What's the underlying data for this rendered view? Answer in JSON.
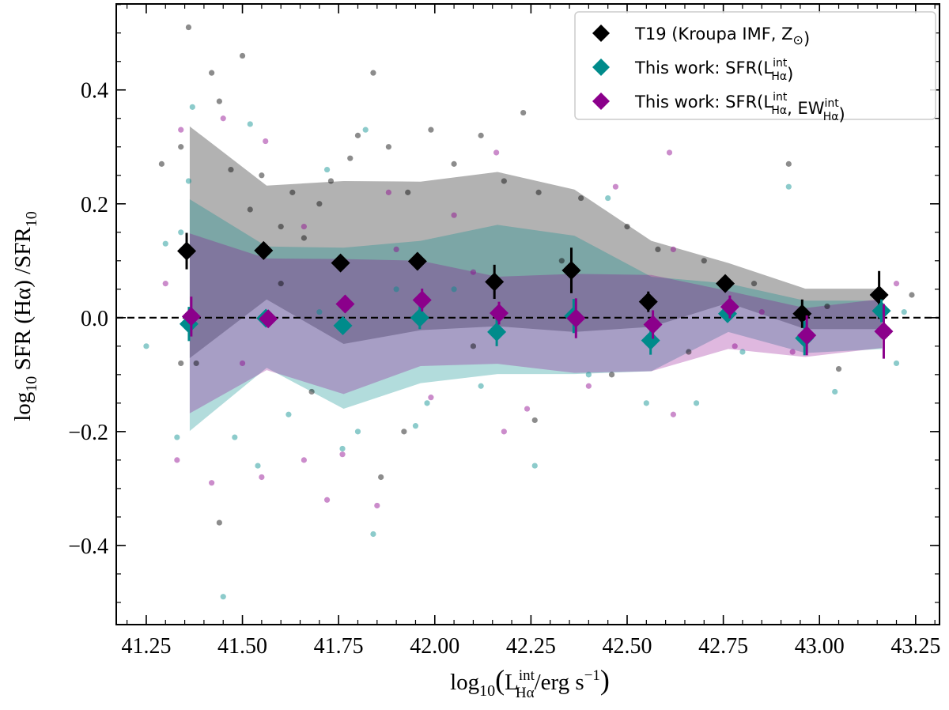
{
  "chart_data": {
    "type": "scatter",
    "xlabel": {
      "prefix": "log",
      "sub": "10",
      "quantity": "L",
      "sup": "int",
      "quantity_sub": "Hα",
      "unit": "/erg s",
      "unit_sup": "−1"
    },
    "ylabel": {
      "prefix": "log",
      "sub": "10",
      "text": " SFR (Hα) /SFR",
      "text_sub": "10"
    },
    "xlim": [
      41.172,
      43.312
    ],
    "ylim": [
      -0.539,
      0.551
    ],
    "xticks": [
      41.25,
      41.5,
      41.75,
      42.0,
      42.25,
      42.5,
      42.75,
      43.0,
      43.25
    ],
    "xtick_labels": [
      "41.25",
      "41.50",
      "41.75",
      "42.00",
      "42.25",
      "42.50",
      "42.75",
      "43.00",
      "43.25"
    ],
    "yticks": [
      -0.4,
      -0.2,
      0.0,
      0.2,
      0.4
    ],
    "ytick_labels": [
      "−0.4",
      "−0.2",
      "0.0",
      "0.2",
      "0.4"
    ],
    "reference_line": {
      "y": 0.0,
      "style": "dashed",
      "color": "#000000"
    },
    "grid": false,
    "legend_placement": "top-right",
    "legend": [
      {
        "text": "T19 (Kroupa IMF, Z",
        "sub": "⊙",
        "tail": ")",
        "color": "#000000"
      },
      {
        "text": "This work: SFR(L",
        "sup": "int",
        "sub": "Hα",
        "tail": ")",
        "color": "#008b8b"
      },
      {
        "text": "This work: SFR(L",
        "sup": "int",
        "sub": "Hα",
        "mid": ", EW",
        "sup2": "int",
        "sub2": "Hα",
        "tail": ")",
        "color": "#8b008b"
      }
    ],
    "band_x": [
      41.363,
      41.563,
      41.763,
      41.963,
      42.163,
      42.363,
      42.563,
      42.763,
      42.963,
      43.163
    ],
    "series": [
      {
        "key": "t19",
        "color": "#000000",
        "band_alpha": 0.3,
        "point_alpha": 0.45,
        "x": [
          41.355,
          41.555,
          41.755,
          41.955,
          42.155,
          42.355,
          42.555,
          42.755,
          42.955,
          43.155
        ],
        "y": [
          0.117,
          0.118,
          0.096,
          0.099,
          0.063,
          0.083,
          0.028,
          0.06,
          0.007,
          0.04
        ],
        "yerr": [
          0.032,
          0.008,
          0.01,
          0.015,
          0.03,
          0.04,
          0.018,
          0.012,
          0.025,
          0.042
        ],
        "band_upper": [
          0.336,
          0.232,
          0.24,
          0.239,
          0.256,
          0.225,
          0.135,
          0.096,
          0.051,
          0.051
        ],
        "band_lower": [
          -0.071,
          0.032,
          -0.046,
          -0.022,
          -0.015,
          -0.025,
          -0.016,
          0.026,
          -0.02,
          -0.02
        ],
        "points": [
          [
            41.29,
            0.27
          ],
          [
            41.34,
            0.3
          ],
          [
            41.36,
            0.51
          ],
          [
            41.42,
            0.43
          ],
          [
            41.44,
            0.38
          ],
          [
            41.47,
            0.26
          ],
          [
            41.5,
            0.46
          ],
          [
            41.52,
            0.19
          ],
          [
            41.55,
            0.25
          ],
          [
            41.6,
            0.16
          ],
          [
            41.63,
            0.22
          ],
          [
            41.66,
            0.14
          ],
          [
            41.7,
            0.2
          ],
          [
            41.73,
            0.24
          ],
          [
            41.78,
            0.28
          ],
          [
            41.8,
            0.32
          ],
          [
            41.84,
            0.43
          ],
          [
            41.88,
            0.3
          ],
          [
            41.93,
            0.22
          ],
          [
            41.99,
            0.33
          ],
          [
            42.05,
            0.27
          ],
          [
            42.12,
            0.32
          ],
          [
            42.18,
            0.24
          ],
          [
            42.23,
            0.36
          ],
          [
            42.27,
            0.22
          ],
          [
            42.38,
            0.21
          ],
          [
            42.33,
            0.1
          ],
          [
            42.5,
            0.16
          ],
          [
            42.58,
            0.12
          ],
          [
            42.7,
            0.1
          ],
          [
            42.83,
            0.06
          ],
          [
            42.92,
            0.27
          ],
          [
            43.02,
            0.02
          ],
          [
            43.24,
            0.04
          ],
          [
            41.44,
            -0.36
          ],
          [
            41.86,
            -0.28
          ],
          [
            41.68,
            -0.13
          ],
          [
            41.92,
            -0.2
          ],
          [
            42.26,
            -0.18
          ],
          [
            42.66,
            -0.06
          ],
          [
            43.05,
            -0.09
          ],
          [
            41.38,
            -0.08
          ],
          [
            41.6,
            0.06
          ],
          [
            42.1,
            -0.05
          ],
          [
            42.46,
            -0.1
          ],
          [
            41.34,
            -0.08
          ]
        ]
      },
      {
        "key": "lint",
        "color": "#008b8b",
        "band_alpha": 0.3,
        "point_alpha": 0.45,
        "x": [
          41.361,
          41.561,
          41.761,
          41.961,
          42.161,
          42.361,
          42.561,
          42.761,
          42.961,
          43.161
        ],
        "y": [
          -0.011,
          -0.001,
          -0.014,
          0.0,
          -0.025,
          0.003,
          -0.04,
          0.007,
          -0.036,
          0.012
        ],
        "yerr": [
          0.03,
          0.01,
          0.015,
          0.02,
          0.025,
          0.03,
          0.025,
          0.015,
          0.03,
          0.02
        ],
        "band_upper": [
          0.208,
          0.125,
          0.123,
          0.135,
          0.163,
          0.144,
          0.072,
          0.06,
          0.03,
          0.03
        ],
        "band_lower": [
          -0.199,
          -0.088,
          -0.16,
          -0.115,
          -0.099,
          -0.099,
          -0.094,
          -0.025,
          -0.062,
          -0.055
        ],
        "points": [
          [
            41.37,
            0.37
          ],
          [
            41.52,
            0.34
          ],
          [
            41.82,
            0.33
          ],
          [
            41.72,
            0.26
          ],
          [
            41.34,
            0.15
          ],
          [
            41.3,
            0.13
          ],
          [
            41.36,
            0.24
          ],
          [
            42.45,
            0.21
          ],
          [
            42.92,
            0.23
          ],
          [
            41.7,
            0.01
          ],
          [
            41.9,
            0.05
          ],
          [
            42.05,
            0.05
          ],
          [
            41.45,
            -0.49
          ],
          [
            41.48,
            -0.21
          ],
          [
            41.54,
            -0.26
          ],
          [
            41.84,
            -0.38
          ],
          [
            41.76,
            -0.23
          ],
          [
            42.26,
            -0.26
          ],
          [
            41.98,
            -0.15
          ],
          [
            42.55,
            -0.15
          ],
          [
            42.68,
            -0.15
          ],
          [
            43.04,
            -0.13
          ],
          [
            43.2,
            -0.08
          ],
          [
            42.8,
            -0.06
          ],
          [
            41.33,
            -0.21
          ],
          [
            41.62,
            -0.17
          ],
          [
            41.25,
            -0.05
          ],
          [
            43.22,
            0.01
          ],
          [
            42.4,
            -0.1
          ],
          [
            41.95,
            -0.19
          ],
          [
            42.12,
            -0.12
          ],
          [
            41.8,
            -0.2
          ]
        ]
      },
      {
        "key": "lint_ew",
        "color": "#8b008b",
        "band_alpha": 0.28,
        "point_alpha": 0.45,
        "x": [
          41.367,
          41.567,
          41.767,
          41.967,
          42.167,
          42.367,
          42.567,
          42.767,
          42.967,
          43.167
        ],
        "y": [
          0.002,
          -0.002,
          0.024,
          0.031,
          0.008,
          -0.001,
          -0.012,
          0.019,
          -0.031,
          -0.024
        ],
        "yerr": [
          0.035,
          0.01,
          0.015,
          0.02,
          0.02,
          0.035,
          0.025,
          0.02,
          0.035,
          0.048
        ],
        "band_upper": [
          0.148,
          0.104,
          0.103,
          0.1,
          0.072,
          0.077,
          0.075,
          0.047,
          0.017,
          0.033
        ],
        "band_lower": [
          -0.168,
          -0.092,
          -0.134,
          -0.085,
          -0.081,
          -0.097,
          -0.094,
          -0.055,
          -0.069,
          -0.053
        ],
        "points": [
          [
            41.34,
            0.33
          ],
          [
            41.45,
            0.35
          ],
          [
            41.56,
            0.31
          ],
          [
            41.88,
            0.22
          ],
          [
            41.66,
            0.16
          ],
          [
            42.05,
            0.18
          ],
          [
            42.47,
            0.23
          ],
          [
            42.61,
            0.29
          ],
          [
            42.62,
            0.12
          ],
          [
            42.16,
            0.29
          ],
          [
            41.3,
            0.06
          ],
          [
            41.42,
            -0.29
          ],
          [
            41.33,
            -0.25
          ],
          [
            41.72,
            -0.32
          ],
          [
            41.66,
            -0.25
          ],
          [
            41.85,
            -0.33
          ],
          [
            42.18,
            -0.2
          ],
          [
            42.24,
            -0.16
          ],
          [
            41.99,
            -0.14
          ],
          [
            42.62,
            -0.17
          ],
          [
            42.4,
            -0.12
          ],
          [
            42.78,
            -0.05
          ],
          [
            43.2,
            0.06
          ],
          [
            42.93,
            -0.06
          ],
          [
            41.9,
            0.12
          ],
          [
            41.55,
            -0.28
          ],
          [
            42.85,
            0.01
          ],
          [
            41.5,
            -0.08
          ],
          [
            42.1,
            0.08
          ],
          [
            41.76,
            -0.24
          ]
        ]
      }
    ]
  }
}
